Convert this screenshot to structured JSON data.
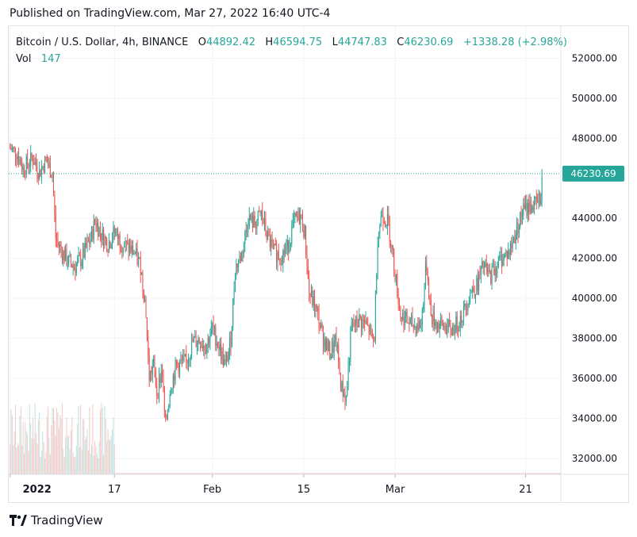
{
  "header": {
    "published": "Published on TradingView.com, Mar 27, 2022 16:40 UTC-4"
  },
  "legend": {
    "symbol": "Bitcoin / U.S. Dollar, 4h, BINANCE",
    "o_label": "O",
    "o_value": "44892.42",
    "h_label": "H",
    "h_value": "46594.75",
    "l_label": "L",
    "l_value": "44747.83",
    "c_label": "C",
    "c_value": "46230.69",
    "change": "+1338.28 (+2.98%)",
    "vol_label": "Vol",
    "vol_value": "147"
  },
  "brand": {
    "name": "TradingView",
    "logo_icon": "tradingview-logo-icon"
  },
  "colors": {
    "up": "#26a69a",
    "down": "#ef5350",
    "last_price_line": "#26a69a",
    "volume_up": "#bfe3df",
    "volume_down": "#f6c9c7"
  },
  "chart_data": {
    "type": "candlestick",
    "interval": "4h",
    "exchange": "BINANCE",
    "symbol": "BTCUSD",
    "ylim": [
      31200,
      53600
    ],
    "y_ticks": [
      "52000.00",
      "50000.00",
      "48000.00",
      "46000.00",
      "44000.00",
      "42000.00",
      "40000.00",
      "38000.00",
      "36000.00",
      "34000.00",
      "32000.00"
    ],
    "y_tick_values": [
      52000,
      50000,
      48000,
      46000,
      44000,
      42000,
      40000,
      38000,
      36000,
      34000,
      32000
    ],
    "x_ticks": [
      {
        "label": "2022",
        "day": 0,
        "bold": true
      },
      {
        "label": "17",
        "day": 16
      },
      {
        "label": "Feb",
        "day": 31
      },
      {
        "label": "15",
        "day": 45
      },
      {
        "label": "Mar",
        "day": 59
      },
      {
        "label": "21",
        "day": 79
      }
    ],
    "x_range_days": [
      -0.2,
      84.4
    ],
    "last_price": 46230.69,
    "last_price_label": "46230.69",
    "close_path": [
      {
        "day": 0.0,
        "price": 47500
      },
      {
        "day": 1.0,
        "price": 47300
      },
      {
        "day": 2.0,
        "price": 46500
      },
      {
        "day": 3.5,
        "price": 47000
      },
      {
        "day": 4.5,
        "price": 46300
      },
      {
        "day": 5.5,
        "price": 46900
      },
      {
        "day": 6.5,
        "price": 46200
      },
      {
        "day": 7.0,
        "price": 43000
      },
      {
        "day": 8.0,
        "price": 42300
      },
      {
        "day": 9.0,
        "price": 41800
      },
      {
        "day": 10.0,
        "price": 41600
      },
      {
        "day": 11.0,
        "price": 42000
      },
      {
        "day": 12.5,
        "price": 43100
      },
      {
        "day": 13.0,
        "price": 43900
      },
      {
        "day": 14.0,
        "price": 43200
      },
      {
        "day": 15.0,
        "price": 42700
      },
      {
        "day": 16.0,
        "price": 43300
      },
      {
        "day": 17.0,
        "price": 42800
      },
      {
        "day": 18.0,
        "price": 42500
      },
      {
        "day": 19.0,
        "price": 42300
      },
      {
        "day": 20.0,
        "price": 41600
      },
      {
        "day": 20.8,
        "price": 39500
      },
      {
        "day": 21.3,
        "price": 36000
      },
      {
        "day": 22.0,
        "price": 36700
      },
      {
        "day": 22.5,
        "price": 35300
      },
      {
        "day": 23.3,
        "price": 36500
      },
      {
        "day": 23.8,
        "price": 33500
      },
      {
        "day": 24.5,
        "price": 35400
      },
      {
        "day": 25.5,
        "price": 36700
      },
      {
        "day": 27.0,
        "price": 36800
      },
      {
        "day": 28.0,
        "price": 37800
      },
      {
        "day": 29.0,
        "price": 37900
      },
      {
        "day": 30.0,
        "price": 37600
      },
      {
        "day": 31.0,
        "price": 38500
      },
      {
        "day": 32.0,
        "price": 37600
      },
      {
        "day": 33.0,
        "price": 36600
      },
      {
        "day": 33.8,
        "price": 37800
      },
      {
        "day": 34.5,
        "price": 41500
      },
      {
        "day": 35.5,
        "price": 42200
      },
      {
        "day": 36.5,
        "price": 44000
      },
      {
        "day": 37.5,
        "price": 43700
      },
      {
        "day": 38.5,
        "price": 44200
      },
      {
        "day": 39.5,
        "price": 43000
      },
      {
        "day": 40.5,
        "price": 42300
      },
      {
        "day": 41.5,
        "price": 42100
      },
      {
        "day": 42.5,
        "price": 42500
      },
      {
        "day": 43.5,
        "price": 43800
      },
      {
        "day": 44.5,
        "price": 44100
      },
      {
        "day": 45.2,
        "price": 43200
      },
      {
        "day": 45.8,
        "price": 40300
      },
      {
        "day": 46.8,
        "price": 39500
      },
      {
        "day": 48.0,
        "price": 38000
      },
      {
        "day": 49.0,
        "price": 37300
      },
      {
        "day": 50.0,
        "price": 37800
      },
      {
        "day": 50.7,
        "price": 35600
      },
      {
        "day": 51.5,
        "price": 35000
      },
      {
        "day": 52.3,
        "price": 38500
      },
      {
        "day": 53.5,
        "price": 38900
      },
      {
        "day": 54.5,
        "price": 38700
      },
      {
        "day": 55.8,
        "price": 37800
      },
      {
        "day": 56.3,
        "price": 43000
      },
      {
        "day": 57.0,
        "price": 44300
      },
      {
        "day": 58.0,
        "price": 43700
      },
      {
        "day": 58.8,
        "price": 41800
      },
      {
        "day": 59.8,
        "price": 39200
      },
      {
        "day": 61.0,
        "price": 38800
      },
      {
        "day": 62.0,
        "price": 38600
      },
      {
        "day": 63.0,
        "price": 38700
      },
      {
        "day": 63.8,
        "price": 41800
      },
      {
        "day": 64.5,
        "price": 39100
      },
      {
        "day": 65.5,
        "price": 38700
      },
      {
        "day": 66.5,
        "price": 38600
      },
      {
        "day": 67.5,
        "price": 38400
      },
      {
        "day": 68.5,
        "price": 38700
      },
      {
        "day": 69.5,
        "price": 39300
      },
      {
        "day": 70.5,
        "price": 40300
      },
      {
        "day": 71.5,
        "price": 40600
      },
      {
        "day": 72.5,
        "price": 41600
      },
      {
        "day": 73.5,
        "price": 41100
      },
      {
        "day": 74.5,
        "price": 41600
      },
      {
        "day": 75.5,
        "price": 42100
      },
      {
        "day": 76.5,
        "price": 42300
      },
      {
        "day": 77.5,
        "price": 43300
      },
      {
        "day": 78.5,
        "price": 44300
      },
      {
        "day": 79.5,
        "price": 44600
      },
      {
        "day": 80.5,
        "price": 44700
      },
      {
        "day": 81.2,
        "price": 44900
      },
      {
        "day": 81.6,
        "price": 46230
      }
    ],
    "volume_note": "volume bars shown only for the first ~half month",
    "volume_days": [
      0,
      16
    ]
  }
}
